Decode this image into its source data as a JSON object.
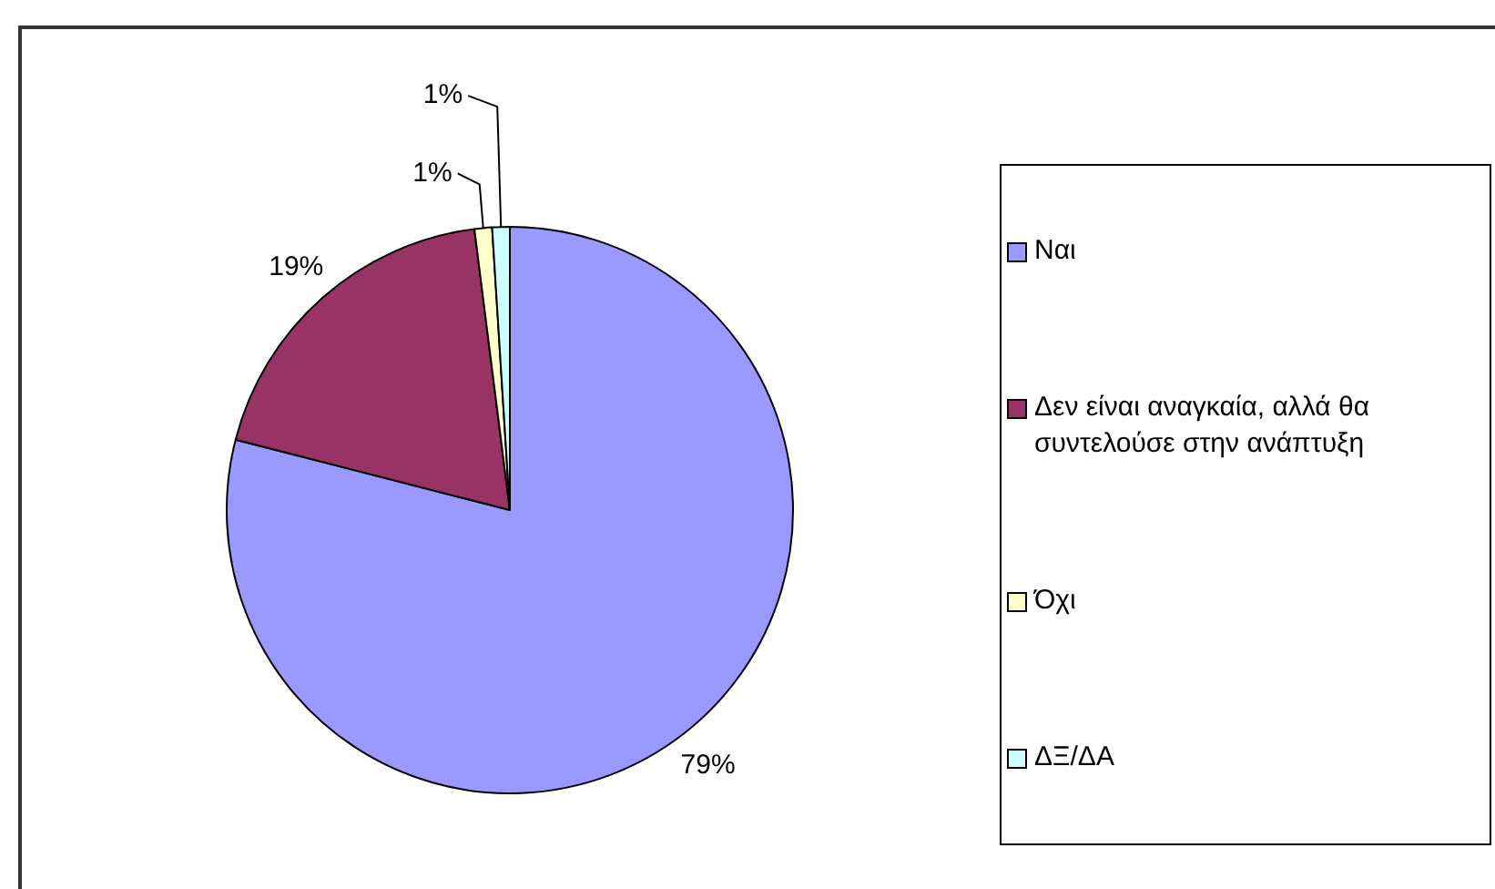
{
  "chart_data": {
    "type": "pie",
    "categories": [
      "Ναι",
      "Δεν είναι αναγκαία, αλλά θα συντελούσε στην ανάπτυξη",
      "Όχι",
      "ΔΞ/ΔΑ"
    ],
    "values": [
      79,
      19,
      1,
      1
    ],
    "value_labels": [
      "79%",
      "19%",
      "1%",
      "1%"
    ],
    "colors": [
      "#9999ff",
      "#993366",
      "#ffffcc",
      "#ccffff"
    ],
    "legend": "right"
  }
}
